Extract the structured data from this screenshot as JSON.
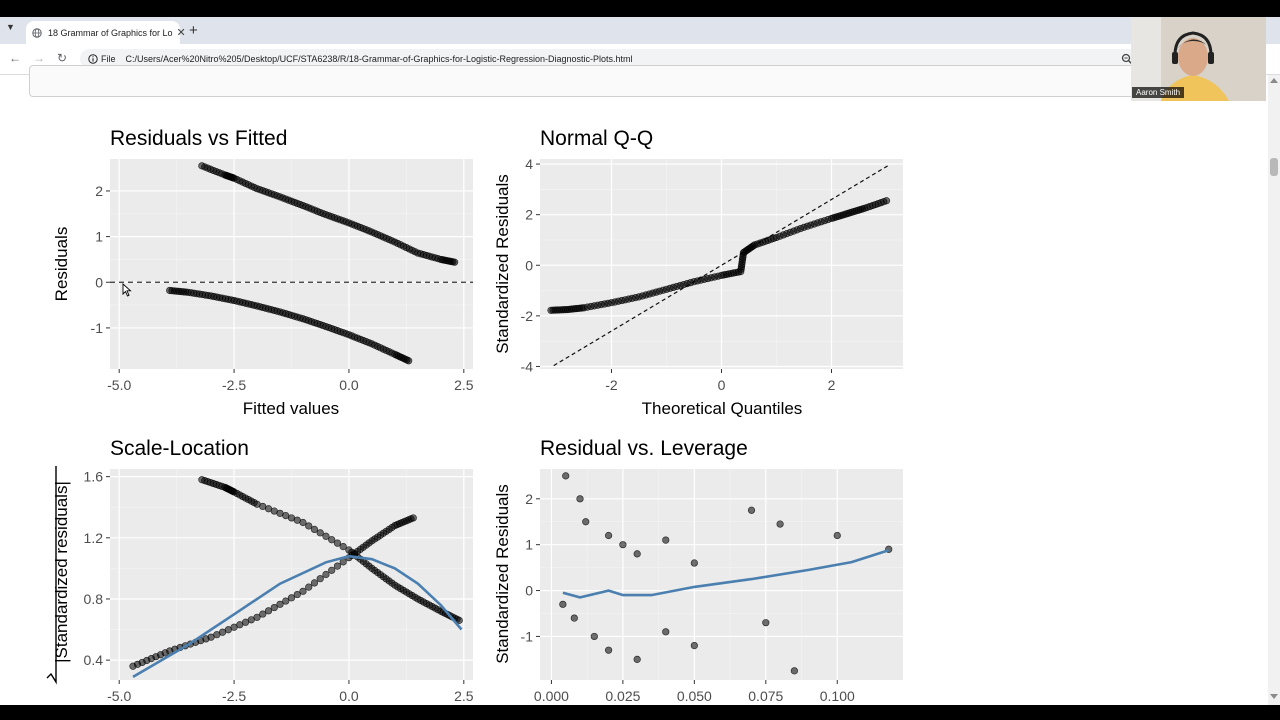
{
  "browser": {
    "tab_title": "18 Grammar of Graphics for Lo",
    "url_chip": "File",
    "url": "C:/Users/Acer%20Nitro%205/Desktop/UCF/STA6238/R/18-Grammar-of-Graphics-for-Logistic-Regression-Diagnostic-Plots.html"
  },
  "webcam": {
    "name": "Aaron Smith"
  },
  "plots": {
    "p1": {
      "title": "Residuals vs Fitted",
      "xlabel": "Fitted values",
      "ylabel": "Residuals",
      "xticks": [
        "-5.0",
        "-2.5",
        "0.0",
        "2.5"
      ],
      "yticks": [
        "2",
        "1",
        "0",
        "-1"
      ]
    },
    "p2": {
      "title": "Normal Q-Q",
      "xlabel": "Theoretical Quantiles",
      "ylabel": "Standardized Residuals",
      "xticks": [
        "-2",
        "0",
        "2"
      ],
      "yticks": [
        "4",
        "2",
        "0",
        "-2",
        "-4"
      ]
    },
    "p3": {
      "title": "Scale-Location",
      "xlabel": "",
      "ylabel": "|Standardized residuals|",
      "xticks": [
        "-5.0",
        "-2.5",
        "0.0",
        "2.5"
      ],
      "yticks": [
        "1.6",
        "1.2",
        "0.8",
        "0.4"
      ]
    },
    "p4": {
      "title": "Residual vs. Leverage",
      "xlabel": "",
      "ylabel": "Standardized Residuals",
      "xticks": [
        "0.000",
        "0.025",
        "0.050",
        "0.075",
        "0.100"
      ],
      "yticks": [
        "2",
        "1",
        "0",
        "-1"
      ]
    }
  },
  "chart_data": [
    {
      "type": "scatter",
      "title": "Residuals vs Fitted",
      "xlabel": "Fitted values",
      "ylabel": "Residuals",
      "xlim": [
        -5.2,
        2.7
      ],
      "ylim": [
        -1.9,
        2.7
      ],
      "grid": true,
      "reference_line": {
        "y": 0,
        "style": "dashed"
      },
      "series": [
        {
          "points": [
            [
              -3.2,
              2.55
            ],
            [
              -2.7,
              2.35
            ],
            [
              -2.5,
              2.28
            ],
            [
              -2.0,
              2.05
            ],
            [
              -1.5,
              1.87
            ],
            [
              -1.0,
              1.68
            ],
            [
              -0.5,
              1.48
            ],
            [
              0.0,
              1.3
            ],
            [
              0.5,
              1.1
            ],
            [
              1.0,
              0.88
            ],
            [
              1.5,
              0.64
            ],
            [
              2.0,
              0.5
            ],
            [
              2.3,
              0.44
            ]
          ]
        },
        {
          "points": [
            [
              -3.9,
              -0.18
            ],
            [
              -3.5,
              -0.22
            ],
            [
              -3.0,
              -0.3
            ],
            [
              -2.5,
              -0.4
            ],
            [
              -2.0,
              -0.52
            ],
            [
              -1.5,
              -0.65
            ],
            [
              -1.0,
              -0.8
            ],
            [
              -0.5,
              -0.97
            ],
            [
              0.0,
              -1.15
            ],
            [
              0.5,
              -1.35
            ],
            [
              1.0,
              -1.58
            ],
            [
              1.3,
              -1.72
            ]
          ]
        }
      ]
    },
    {
      "type": "scatter",
      "title": "Normal Q-Q",
      "xlabel": "Theoretical Quantiles",
      "ylabel": "Standardized Residuals",
      "xlim": [
        -3.3,
        3.3
      ],
      "ylim": [
        -4.1,
        4.2
      ],
      "grid": true,
      "reference_line": {
        "slope": 1.3,
        "intercept": 0,
        "style": "dashed"
      },
      "series": [
        {
          "points": [
            [
              -3.1,
              -1.78
            ],
            [
              -2.8,
              -1.75
            ],
            [
              -2.5,
              -1.68
            ],
            [
              -2.0,
              -1.48
            ],
            [
              -1.5,
              -1.25
            ],
            [
              -1.0,
              -0.95
            ],
            [
              -0.5,
              -0.65
            ],
            [
              0.0,
              -0.4
            ],
            [
              0.35,
              -0.25
            ],
            [
              0.4,
              0.5
            ],
            [
              0.6,
              0.8
            ],
            [
              1.0,
              1.1
            ],
            [
              1.5,
              1.5
            ],
            [
              2.0,
              1.85
            ],
            [
              2.3,
              2.05
            ],
            [
              2.6,
              2.25
            ],
            [
              3.0,
              2.55
            ]
          ]
        }
      ]
    },
    {
      "type": "scatter",
      "title": "Scale-Location",
      "xlabel": "",
      "ylabel": "|Standardized residuals|",
      "xlim": [
        -5.2,
        2.7
      ],
      "ylim": [
        0.27,
        1.65
      ],
      "grid": true,
      "series": [
        {
          "points": [
            [
              -4.7,
              0.36
            ],
            [
              -3.9,
              0.46
            ],
            [
              -3.0,
              0.55
            ],
            [
              -2.0,
              0.68
            ],
            [
              -1.0,
              0.85
            ],
            [
              0.0,
              1.07
            ],
            [
              0.5,
              1.18
            ],
            [
              1.0,
              1.28
            ],
            [
              1.4,
              1.33
            ]
          ]
        },
        {
          "points": [
            [
              -3.2,
              1.58
            ],
            [
              -2.7,
              1.53
            ],
            [
              -2.5,
              1.5
            ],
            [
              -2.0,
              1.42
            ],
            [
              -1.0,
              1.3
            ],
            [
              0.0,
              1.12
            ],
            [
              0.5,
              1.0
            ],
            [
              1.0,
              0.89
            ],
            [
              1.5,
              0.8
            ],
            [
              2.0,
              0.72
            ],
            [
              2.4,
              0.66
            ]
          ]
        }
      ],
      "smooth": {
        "points": [
          [
            -4.7,
            0.29
          ],
          [
            -3.5,
            0.5
          ],
          [
            -2.5,
            0.7
          ],
          [
            -1.5,
            0.9
          ],
          [
            -0.5,
            1.04
          ],
          [
            0.0,
            1.08
          ],
          [
            0.5,
            1.06
          ],
          [
            1.0,
            1.0
          ],
          [
            1.5,
            0.9
          ],
          [
            2.0,
            0.76
          ],
          [
            2.45,
            0.6
          ]
        ],
        "color": "#4a7fb0"
      }
    },
    {
      "type": "scatter",
      "title": "Residual vs. Leverage",
      "xlabel": "",
      "ylabel": "Standardized Residuals",
      "xlim": [
        -0.004,
        0.123
      ],
      "ylim": [
        -1.95,
        2.65
      ],
      "grid": true,
      "series": [
        {
          "points": [
            [
              0.005,
              2.5
            ],
            [
              0.01,
              2.0
            ],
            [
              0.012,
              1.5
            ],
            [
              0.02,
              1.2
            ],
            [
              0.025,
              1.0
            ],
            [
              0.03,
              0.8
            ],
            [
              0.04,
              1.1
            ],
            [
              0.05,
              0.6
            ],
            [
              0.07,
              1.75
            ],
            [
              0.08,
              1.45
            ],
            [
              0.1,
              1.2
            ],
            [
              0.118,
              0.9
            ],
            [
              0.004,
              -0.3
            ],
            [
              0.008,
              -0.6
            ],
            [
              0.015,
              -1.0
            ],
            [
              0.02,
              -1.3
            ],
            [
              0.03,
              -1.5
            ],
            [
              0.04,
              -0.9
            ],
            [
              0.05,
              -1.2
            ],
            [
              0.075,
              -0.7
            ],
            [
              0.085,
              -1.75
            ]
          ]
        }
      ],
      "smooth": {
        "points": [
          [
            0.004,
            -0.05
          ],
          [
            0.01,
            -0.15
          ],
          [
            0.02,
            0.0
          ],
          [
            0.025,
            -0.1
          ],
          [
            0.035,
            -0.1
          ],
          [
            0.05,
            0.08
          ],
          [
            0.07,
            0.25
          ],
          [
            0.09,
            0.45
          ],
          [
            0.105,
            0.62
          ],
          [
            0.118,
            0.88
          ]
        ],
        "color": "#4a7fb0"
      }
    }
  ]
}
